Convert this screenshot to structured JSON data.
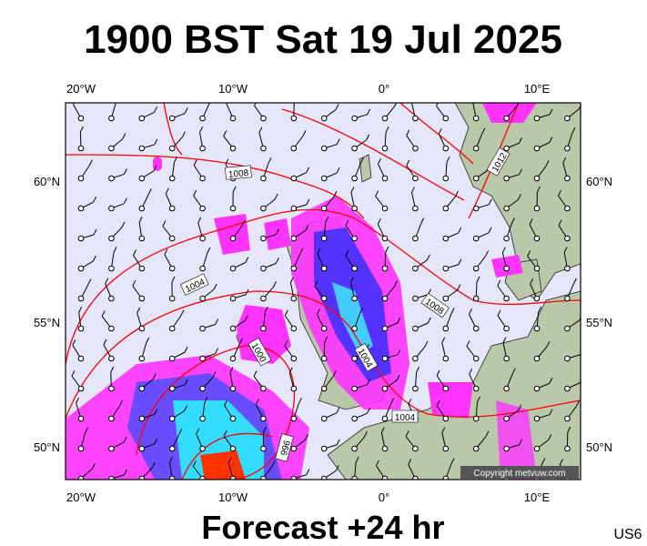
{
  "title": "1900 BST Sat 19 Jul 2025",
  "subtitle": "Forecast +24 hr",
  "code": "US6",
  "map": {
    "lon_labels": [
      "20°W",
      "10°W",
      "0°",
      "10°E"
    ],
    "lat_labels": [
      "60°N",
      "55°N",
      "50°N"
    ],
    "isobar_labels": [
      "1008",
      "1012",
      "1004",
      "1008",
      "1004",
      "1004",
      "1000",
      "996"
    ],
    "copyright": "Copyright metvuw.com"
  }
}
